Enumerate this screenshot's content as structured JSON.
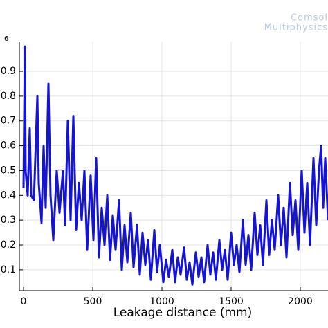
{
  "chart_data": {
    "type": "line",
    "watermark": [
      "Comsol",
      "Multiphysics"
    ],
    "y_exponent": "6",
    "xlabel": "Leakage distance (mm)",
    "x": [
      0,
      10,
      15,
      30,
      45,
      55,
      75,
      100,
      110,
      130,
      145,
      160,
      180,
      195,
      215,
      240,
      260,
      285,
      300,
      320,
      340,
      360,
      380,
      400,
      420,
      440,
      460,
      485,
      505,
      525,
      545,
      565,
      585,
      605,
      625,
      645,
      665,
      690,
      710,
      730,
      750,
      775,
      795,
      820,
      840,
      860,
      880,
      900,
      920,
      945,
      965,
      985,
      1010,
      1030,
      1050,
      1075,
      1095,
      1115,
      1135,
      1160,
      1180,
      1200,
      1220,
      1245,
      1265,
      1285,
      1305,
      1330,
      1350,
      1370,
      1390,
      1415,
      1435,
      1455,
      1475,
      1500,
      1520,
      1540,
      1560,
      1585,
      1605,
      1625,
      1645,
      1670,
      1690,
      1710,
      1730,
      1755,
      1775,
      1795,
      1815,
      1840,
      1860,
      1880,
      1900,
      1925,
      1945,
      1965,
      1985,
      2010,
      2030,
      2050,
      2070,
      2095,
      2115,
      2135,
      2150,
      2165,
      2180,
      2200
    ],
    "series": [
      {
        "color": "#1414d2",
        "values": [
          0.43,
          1.0,
          0.5,
          0.4,
          0.67,
          0.4,
          0.38,
          0.8,
          0.45,
          0.29,
          0.6,
          0.35,
          0.85,
          0.4,
          0.22,
          0.5,
          0.33,
          0.5,
          0.28,
          0.7,
          0.3,
          0.72,
          0.26,
          0.45,
          0.3,
          0.5,
          0.18,
          0.48,
          0.22,
          0.55,
          0.15,
          0.35,
          0.2,
          0.4,
          0.14,
          0.32,
          0.18,
          0.38,
          0.1,
          0.28,
          0.13,
          0.33,
          0.11,
          0.28,
          0.08,
          0.25,
          0.12,
          0.22,
          0.06,
          0.26,
          0.09,
          0.2,
          0.05,
          0.14,
          0.07,
          0.18,
          0.05,
          0.15,
          0.08,
          0.19,
          0.06,
          0.13,
          0.04,
          0.17,
          0.07,
          0.15,
          0.05,
          0.2,
          0.08,
          0.17,
          0.06,
          0.22,
          0.1,
          0.18,
          0.06,
          0.25,
          0.12,
          0.2,
          0.09,
          0.3,
          0.12,
          0.24,
          0.1,
          0.33,
          0.16,
          0.28,
          0.12,
          0.38,
          0.16,
          0.3,
          0.18,
          0.4,
          0.2,
          0.35,
          0.15,
          0.45,
          0.24,
          0.38,
          0.18,
          0.5,
          0.25,
          0.45,
          0.2,
          0.55,
          0.28,
          0.5,
          0.6,
          0.35,
          0.55,
          0.3
        ]
      }
    ],
    "xlim": [
      -30,
      2200
    ],
    "ylim": [
      0.016,
      1.02
    ],
    "xticks": [
      0,
      500,
      1000,
      1500,
      2000
    ],
    "yticks": [
      0.1,
      0.2,
      0.3,
      0.4,
      0.5,
      0.6,
      0.7,
      0.8,
      0.9
    ],
    "grid": true
  }
}
